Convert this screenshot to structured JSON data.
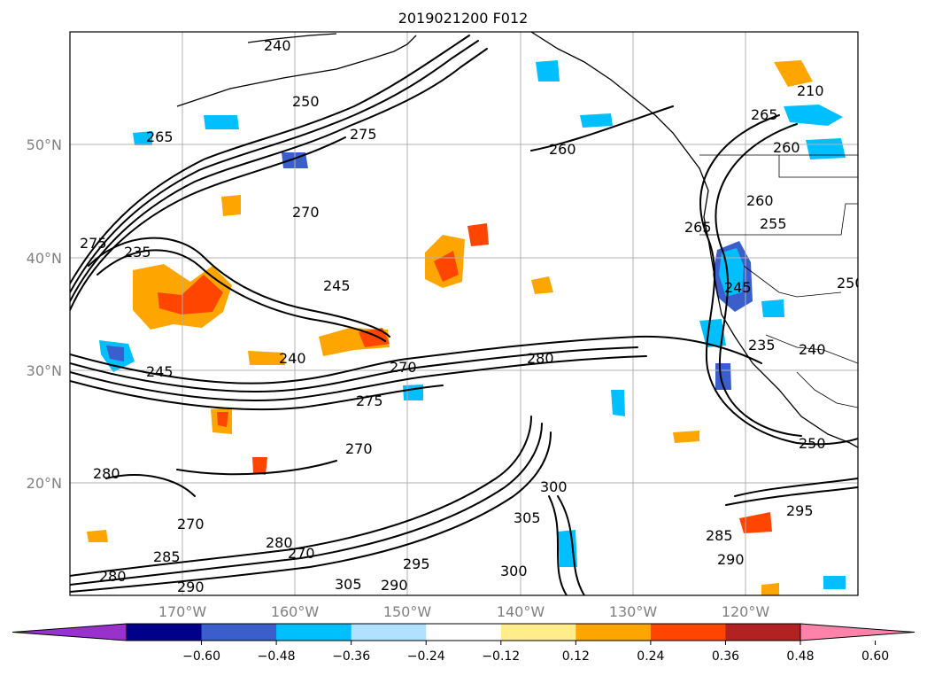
{
  "title": "2019021200 F012",
  "lat_labels": [
    "50°N",
    "40°N",
    "30°N",
    "20°N"
  ],
  "lon_labels": [
    "170°W",
    "160°W",
    "150°W",
    "140°W",
    "130°W",
    "120°W"
  ],
  "colorbar": {
    "ticks": [
      "−0.60",
      "−0.48",
      "−0.36",
      "−0.24",
      "−0.12",
      "0.12",
      "0.24",
      "0.36",
      "0.48",
      "0.60"
    ],
    "colors": [
      "#9932cc",
      "#00008b",
      "#3a5fcd",
      "#00bfff",
      "#b0e2ff",
      "#ffffff",
      "#ffec8b",
      "#ffa500",
      "#ff4500",
      "#b22222",
      "#ff82ab"
    ]
  },
  "contour_labels": [
    "250",
    "265",
    "275",
    "270",
    "260",
    "235",
    "245",
    "240",
    "245",
    "270",
    "275",
    "280",
    "270",
    "270",
    "280",
    "285",
    "280",
    "290",
    "270",
    "280",
    "295",
    "305",
    "300",
    "300",
    "290",
    "285",
    "290",
    "295",
    "250",
    "235",
    "260",
    "255",
    "265",
    "260",
    "265",
    "210",
    "245",
    "240",
    "250",
    "305",
    "240",
    "275"
  ]
}
